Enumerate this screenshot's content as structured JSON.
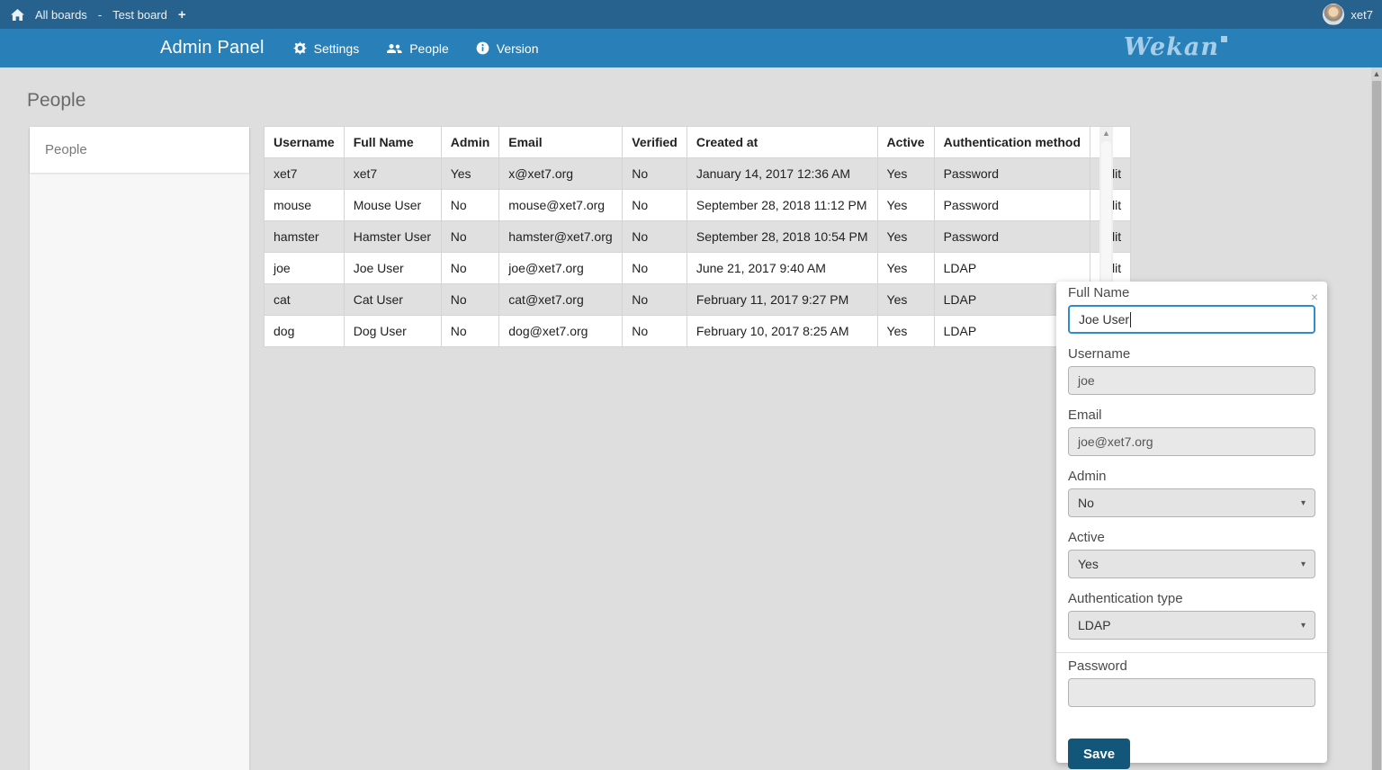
{
  "topbar": {
    "breadcrumb": {
      "home_icon": "home-icon",
      "all_boards": "All boards",
      "separator": "-",
      "board_name": "Test board",
      "add_board": "+"
    },
    "user": {
      "name": "xet7",
      "avatar_icon": "user-avatar"
    }
  },
  "adminbar": {
    "title": "Admin Panel",
    "nav": [
      {
        "icon": "gear-icon",
        "label": "Settings"
      },
      {
        "icon": "people-icon",
        "label": "People"
      },
      {
        "icon": "info-icon",
        "label": "Version"
      }
    ],
    "logo_text": "Wekan"
  },
  "page": {
    "heading": "People"
  },
  "sidebar": {
    "items": [
      {
        "label": "People",
        "active": true
      }
    ]
  },
  "table": {
    "columns": [
      "Username",
      "Full Name",
      "Admin",
      "Email",
      "Verified",
      "Created at",
      "Active",
      "Authentication method",
      ""
    ],
    "edit_label": "Edit",
    "rows": [
      [
        "xet7",
        "xet7",
        "Yes",
        "x@xet7.org",
        "No",
        "January 14, 2017 12:36 AM",
        "Yes",
        "Password"
      ],
      [
        "mouse",
        "Mouse User",
        "No",
        "mouse@xet7.org",
        "No",
        "September 28, 2018 11:12 PM",
        "Yes",
        "Password"
      ],
      [
        "hamster",
        "Hamster User",
        "No",
        "hamster@xet7.org",
        "No",
        "September 28, 2018 10:54 PM",
        "Yes",
        "Password"
      ],
      [
        "joe",
        "Joe User",
        "No",
        "joe@xet7.org",
        "No",
        "June 21, 2017 9:40 AM",
        "Yes",
        "LDAP"
      ],
      [
        "cat",
        "Cat User",
        "No",
        "cat@xet7.org",
        "No",
        "February 11, 2017 9:27 PM",
        "Yes",
        "LDAP"
      ],
      [
        "dog",
        "Dog User",
        "No",
        "dog@xet7.org",
        "No",
        "February 10, 2017 8:25 AM",
        "Yes",
        "LDAP"
      ]
    ]
  },
  "edit_panel": {
    "close_icon": "×",
    "full_name": {
      "label": "Full Name",
      "value": "Joe User"
    },
    "username": {
      "label": "Username",
      "value": "joe"
    },
    "email": {
      "label": "Email",
      "value": "joe@xet7.org"
    },
    "admin": {
      "label": "Admin",
      "value": "No"
    },
    "active": {
      "label": "Active",
      "value": "Yes"
    },
    "auth_type": {
      "label": "Authentication type",
      "value": "LDAP"
    },
    "password": {
      "label": "Password",
      "value": ""
    },
    "save_label": "Save"
  },
  "colors": {
    "topbar": "#27628f",
    "header": "#2980b9",
    "page_background": "#dedede",
    "row_stripe": "#e0e0e0",
    "focused_input_border": "#2f8dcc",
    "save_button": "#12567a",
    "logo": "#a7cde8"
  }
}
